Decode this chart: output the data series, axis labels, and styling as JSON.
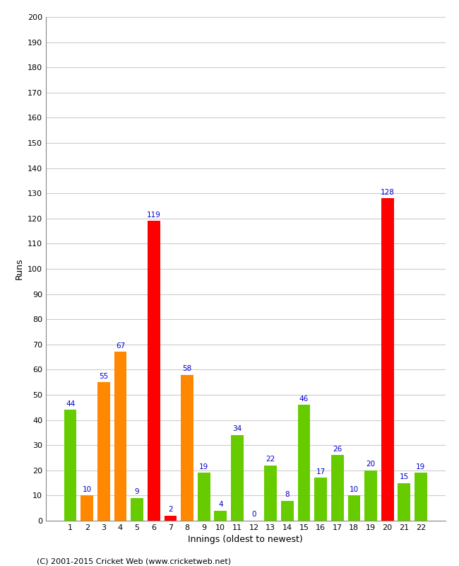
{
  "innings": [
    1,
    2,
    3,
    4,
    5,
    6,
    7,
    8,
    9,
    10,
    11,
    12,
    13,
    14,
    15,
    16,
    17,
    18,
    19,
    20,
    21,
    22
  ],
  "values": [
    44,
    10,
    55,
    67,
    9,
    119,
    2,
    58,
    19,
    4,
    34,
    0,
    22,
    8,
    46,
    17,
    26,
    10,
    20,
    128,
    15,
    19
  ],
  "colors": [
    "#66cc00",
    "#ff8800",
    "#ff8800",
    "#ff8800",
    "#66cc00",
    "#ff0000",
    "#ff0000",
    "#ff8800",
    "#66cc00",
    "#66cc00",
    "#66cc00",
    "#66cc00",
    "#66cc00",
    "#66cc00",
    "#66cc00",
    "#66cc00",
    "#66cc00",
    "#66cc00",
    "#66cc00",
    "#ff0000",
    "#66cc00",
    "#66cc00"
  ],
  "xlabel": "Innings (oldest to newest)",
  "ylabel": "Runs",
  "ylim": [
    0,
    200
  ],
  "ytick_step": 10,
  "label_color": "#0000cc",
  "bg_color": "#ffffff",
  "grid_color": "#cccccc",
  "footer": "(C) 2001-2015 Cricket Web (www.cricketweb.net)"
}
